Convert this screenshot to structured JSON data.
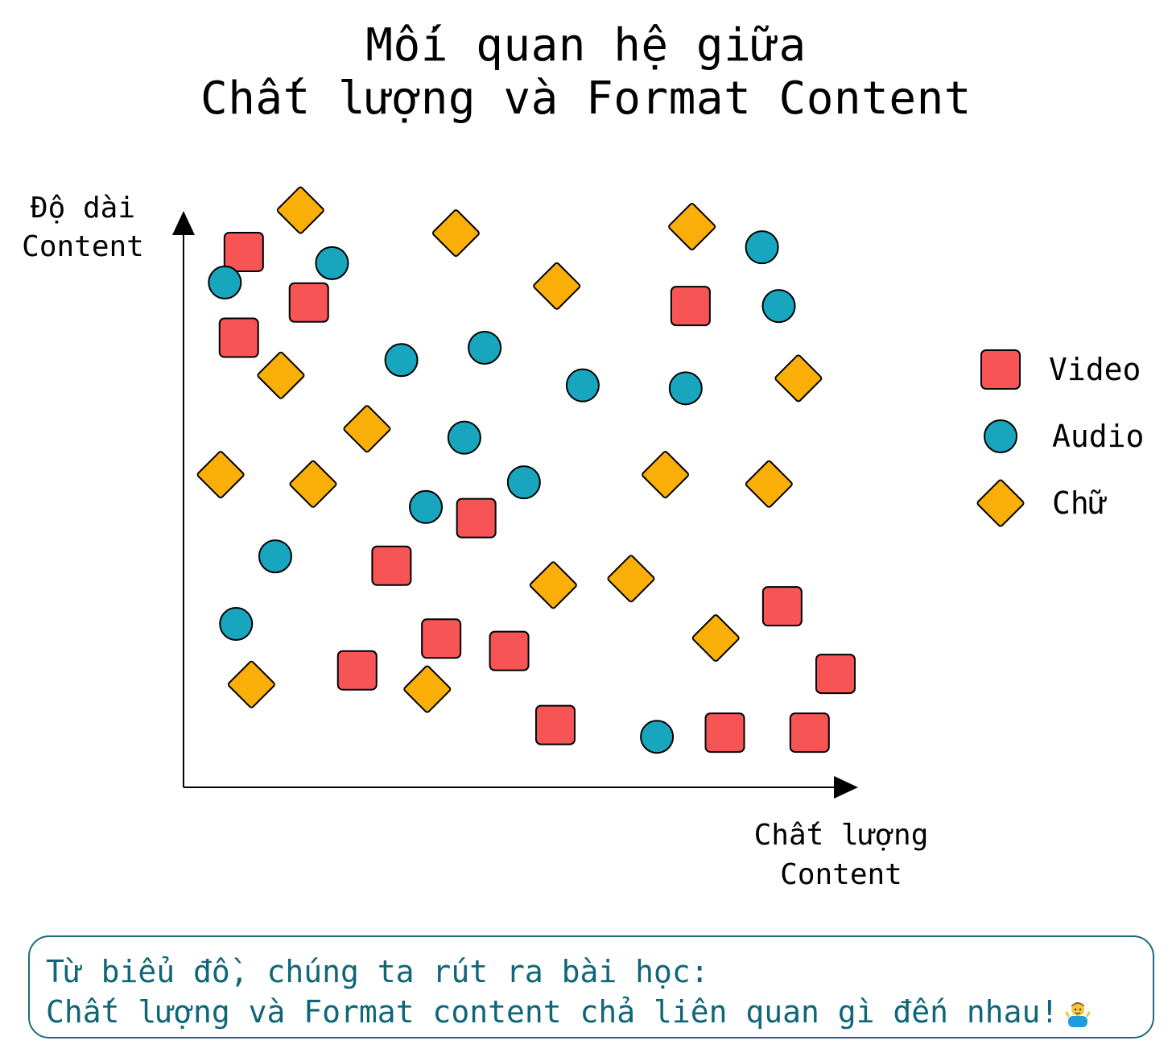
{
  "title": {
    "line1": "Mối quan hệ giữa",
    "line2": "Chất lượng và Format Content"
  },
  "chart_data": {
    "type": "scatter",
    "title": "Mối quan hệ giữa Chất lượng và Format Content",
    "ylabel_lines": [
      "Độ dài",
      "Content"
    ],
    "xlabel_lines": [
      "Chất lượng",
      "Content"
    ],
    "xlim": [
      0,
      100
    ],
    "ylim": [
      0,
      100
    ],
    "ticks": "none",
    "grid": false,
    "legend_placement": "right",
    "series": [
      {
        "name": "Video",
        "marker": "rounded-square",
        "color": "#f75555",
        "points": [
          [
            8.6,
            91.1
          ],
          [
            17.9,
            82.5
          ],
          [
            7.9,
            76.5
          ],
          [
            29.7,
            37.7
          ],
          [
            36.8,
            25.3
          ],
          [
            24.8,
            19.9
          ],
          [
            46.5,
            23.2
          ],
          [
            41.8,
            45.8
          ],
          [
            53.1,
            10.6
          ],
          [
            72.4,
            81.9
          ],
          [
            85.5,
            30.8
          ],
          [
            93.1,
            19.3
          ],
          [
            77.3,
            9.3
          ],
          [
            89.4,
            9.3
          ]
        ]
      },
      {
        "name": "Audio",
        "marker": "circle",
        "color": "#17a6be",
        "points": [
          [
            5.9,
            85.9
          ],
          [
            21.2,
            89.2
          ],
          [
            31.1,
            72.7
          ],
          [
            43.0,
            74.8
          ],
          [
            57.0,
            68.4
          ],
          [
            71.7,
            67.9
          ],
          [
            82.6,
            91.9
          ],
          [
            85.0,
            81.9
          ],
          [
            40.1,
            59.5
          ],
          [
            48.6,
            51.9
          ],
          [
            34.6,
            47.7
          ],
          [
            13.1,
            39.3
          ],
          [
            7.5,
            27.8
          ],
          [
            67.6,
            8.6
          ]
        ]
      },
      {
        "name": "Chữ",
        "marker": "diamond",
        "color": "#f9ae08",
        "points": [
          [
            16.7,
            98.2
          ],
          [
            38.9,
            94.3
          ],
          [
            72.6,
            95.4
          ],
          [
            53.3,
            85.3
          ],
          [
            13.9,
            70.1
          ],
          [
            87.8,
            69.6
          ],
          [
            26.2,
            61.0
          ],
          [
            5.3,
            53.2
          ],
          [
            18.5,
            51.6
          ],
          [
            68.8,
            53.2
          ],
          [
            83.6,
            51.6
          ],
          [
            52.8,
            34.4
          ],
          [
            63.9,
            35.5
          ],
          [
            76.0,
            25.4
          ],
          [
            9.7,
            17.5
          ],
          [
            34.8,
            16.7
          ]
        ]
      }
    ]
  },
  "note": {
    "line1": "Từ biểu đồ, chúng ta rút ra bài học:",
    "line2": "Chất lượng và Format content chả liên quan gì đến nhau!",
    "emoji": "person-shrugging-emoji"
  }
}
